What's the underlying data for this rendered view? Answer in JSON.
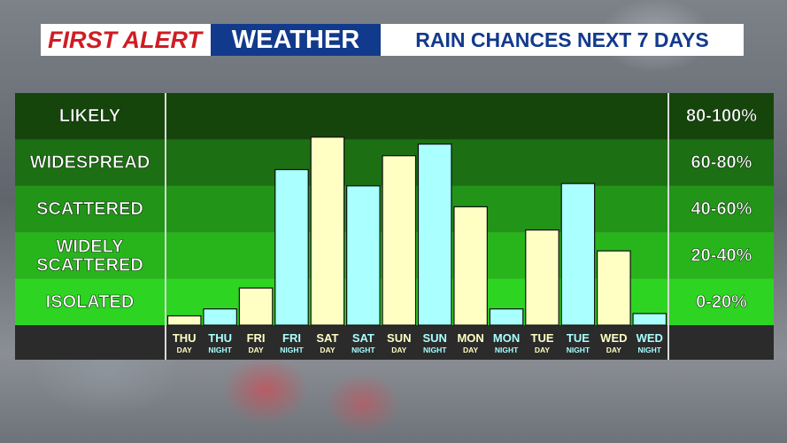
{
  "header": {
    "brand_first": "FIRST ALERT",
    "brand_weather": "WEATHER",
    "subtitle": "RAIN CHANCES NEXT 7 DAYS"
  },
  "colors": {
    "day_bar": "#ffffc4",
    "night_bar": "#aaffff",
    "band_likely": "#16450c",
    "band_widespread": "#1c6f12",
    "band_scattered": "#229418",
    "band_widely_scattered": "#28b51c",
    "band_isolated": "#2ed422",
    "axis_strip": "#2b2b2b"
  },
  "chart_data": {
    "type": "bar",
    "ylim": [
      0,
      100
    ],
    "bands": [
      {
        "label": "LIKELY",
        "range": "80-100%",
        "min": 80,
        "max": 100
      },
      {
        "label": "WIDESPREAD",
        "range": "60-80%",
        "min": 60,
        "max": 80
      },
      {
        "label": "SCATTERED",
        "range": "40-60%",
        "min": 40,
        "max": 60
      },
      {
        "label": "WIDELY SCATTERED",
        "range": "20-40%",
        "min": 20,
        "max": 40
      },
      {
        "label": "ISOLATED",
        "range": "0-20%",
        "min": 0,
        "max": 20
      }
    ],
    "categories": [
      {
        "day": "THU",
        "period": "DAY"
      },
      {
        "day": "THU",
        "period": "NIGHT"
      },
      {
        "day": "FRI",
        "period": "DAY"
      },
      {
        "day": "FRI",
        "period": "NIGHT"
      },
      {
        "day": "SAT",
        "period": "DAY"
      },
      {
        "day": "SAT",
        "period": "NIGHT"
      },
      {
        "day": "SUN",
        "period": "DAY"
      },
      {
        "day": "SUN",
        "period": "NIGHT"
      },
      {
        "day": "MON",
        "period": "DAY"
      },
      {
        "day": "MON",
        "period": "NIGHT"
      },
      {
        "day": "TUE",
        "period": "DAY"
      },
      {
        "day": "TUE",
        "period": "NIGHT"
      },
      {
        "day": "WED",
        "period": "DAY"
      },
      {
        "day": "WED",
        "period": "NIGHT"
      }
    ],
    "values": [
      4,
      7,
      16,
      67,
      81,
      60,
      73,
      78,
      51,
      7,
      41,
      61,
      32,
      5
    ]
  }
}
